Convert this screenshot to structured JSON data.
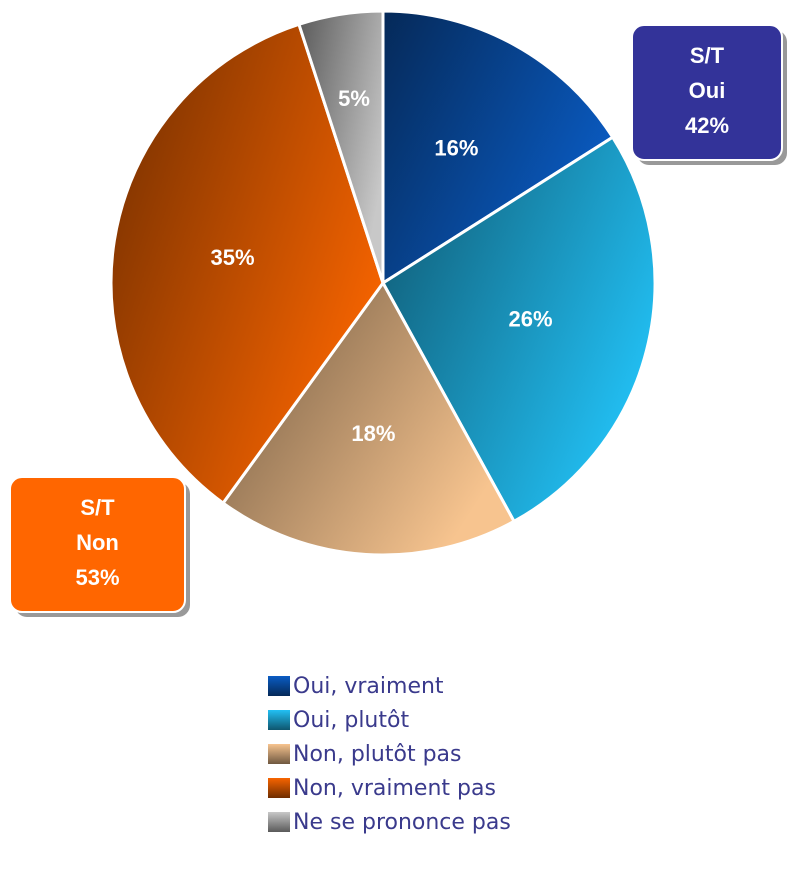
{
  "chart_data": {
    "type": "pie",
    "categories": [
      "Oui, vraiment",
      "Oui, plutôt",
      "Non, plutôt pas",
      "Non, vraiment pas",
      "Ne se prononce pas"
    ],
    "values": [
      16,
      26,
      18,
      35,
      5
    ],
    "value_labels": [
      "16%",
      "26%",
      "18%",
      "35%",
      "5%"
    ],
    "colors": [
      "#0a5cc4",
      "#22c0f4",
      "#f7c48f",
      "#f76400",
      "#c8c8c8"
    ],
    "annotations": [
      {
        "lines": [
          "S/T",
          "Oui",
          "42%"
        ],
        "color": "#333399"
      },
      {
        "lines": [
          "S/T",
          "Non",
          "53%"
        ],
        "color": "#ff6600"
      }
    ]
  }
}
